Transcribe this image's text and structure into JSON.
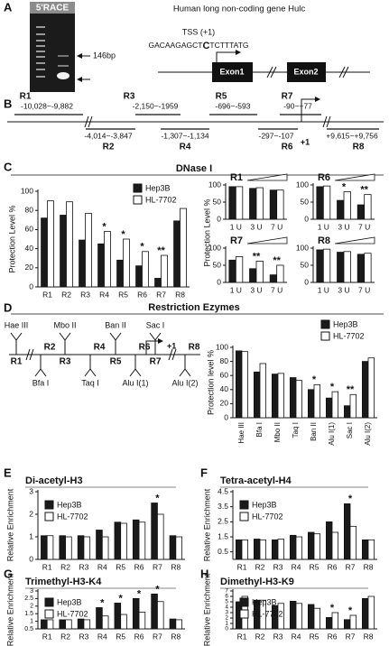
{
  "panel_labels": [
    "A",
    "B",
    "C",
    "D",
    "E",
    "F",
    "G",
    "H"
  ],
  "panel_a": {
    "gel_label": "5'RACE",
    "size_marker": "146bp",
    "gene_title": "Human long non-coding gene Hulc",
    "tss": "TSS (+1)",
    "sequence_before": "GACAAGAGCT",
    "sequence_tss": "C",
    "sequence_after": "TCTTTATG",
    "exons": [
      "Exon1",
      "Exon2"
    ]
  },
  "panel_b": {
    "regions": [
      {
        "name": "R1",
        "range": "-10,028~-9,882"
      },
      {
        "name": "R2",
        "range": "-4,014~-3,847"
      },
      {
        "name": "R3",
        "range": "-2,150~-1959"
      },
      {
        "name": "R4",
        "range": "-1,307~-1,134"
      },
      {
        "name": "R5",
        "range": "-696~-593"
      },
      {
        "name": "R6",
        "range": "-297~-107"
      },
      {
        "name": "R7",
        "range": "-90~+77"
      },
      {
        "name": "R8",
        "range": "+9,615~+9,756"
      }
    ],
    "tss": "+1"
  },
  "panel_c": {
    "title": "DNase I"
  },
  "panel_d": {
    "title": "Restriction Ezymes",
    "enzymes": [
      "Hae III",
      "Bfa I",
      "Mbo II",
      "Taq I",
      "Ban II",
      "Alu I(1)",
      "Sac I",
      "Alu I(2)"
    ],
    "regions": [
      "R1",
      "R2",
      "R3",
      "R4",
      "R5",
      "R6",
      "R7",
      "R8"
    ],
    "tss": "+1"
  },
  "chart_data": [
    {
      "type": "bar",
      "y_label": "Protection Level %",
      "categories": [
        "R1",
        "R2",
        "R3",
        "R4",
        "R5",
        "R6",
        "R7",
        "R8"
      ],
      "series": [
        {
          "name": "Hep3B",
          "color": "#1a1a1a",
          "values": [
            72,
            75,
            49,
            45,
            28,
            22,
            9,
            69
          ]
        },
        {
          "name": "HL-7702",
          "color": "#ffffff",
          "values": [
            90,
            89,
            77,
            58,
            50,
            37,
            33,
            82
          ]
        }
      ],
      "ylim": [
        0,
        100
      ],
      "yticks": [
        0,
        20,
        40,
        60,
        80,
        100
      ],
      "significance": [
        null,
        null,
        null,
        "*",
        "*",
        "*",
        "**",
        null
      ],
      "legend": "top-right"
    },
    {
      "type": "bar",
      "title": "R1",
      "y_label": "Protection Level %",
      "categories": [
        "1 U",
        "3 U",
        "7 U"
      ],
      "series": [
        {
          "color": "#1a1a1a",
          "values": [
            95,
            90,
            85
          ]
        },
        {
          "color": "#ffffff",
          "values": [
            95,
            92,
            85
          ]
        }
      ],
      "ylim": [
        0,
        100
      ],
      "yticks": [
        0,
        50,
        100
      ],
      "significance": [
        null,
        null,
        null
      ]
    },
    {
      "type": "bar",
      "title": "R6",
      "categories": [
        "1 U",
        "3 U",
        "7 U"
      ],
      "series": [
        {
          "color": "#1a1a1a",
          "values": [
            95,
            55,
            42
          ]
        },
        {
          "color": "#ffffff",
          "values": [
            97,
            80,
            72
          ]
        }
      ],
      "ylim": [
        0,
        100
      ],
      "yticks": [
        0,
        50,
        100
      ],
      "significance": [
        null,
        "*",
        "**"
      ]
    },
    {
      "type": "bar",
      "title": "R7",
      "categories": [
        "1 U",
        "3 U",
        "7 U"
      ],
      "series": [
        {
          "color": "#1a1a1a",
          "values": [
            65,
            40,
            22
          ]
        },
        {
          "color": "#ffffff",
          "values": [
            75,
            62,
            50
          ]
        }
      ],
      "ylim": [
        0,
        100
      ],
      "yticks": [
        0,
        50,
        100
      ],
      "significance": [
        null,
        "**",
        "**"
      ]
    },
    {
      "type": "bar",
      "title": "R8",
      "categories": [
        "1 U",
        "3 U",
        "7 U"
      ],
      "series": [
        {
          "color": "#1a1a1a",
          "values": [
            95,
            88,
            82
          ]
        },
        {
          "color": "#ffffff",
          "values": [
            97,
            90,
            85
          ]
        }
      ],
      "ylim": [
        0,
        100
      ],
      "yticks": [
        0,
        50,
        100
      ],
      "significance": [
        null,
        null,
        null
      ]
    },
    {
      "type": "bar",
      "y_label": "Protection level %",
      "categories": [
        "Hae III",
        "Bfa I",
        "Mbo II",
        "Taq I",
        "Ban II",
        "Alu I(1)",
        "Sac I",
        "Alu I(2)"
      ],
      "series": [
        {
          "name": "Hep3B",
          "color": "#1a1a1a",
          "values": [
            95,
            65,
            62,
            57,
            40,
            28,
            17,
            80
          ]
        },
        {
          "name": "HL-7702",
          "color": "#ffffff",
          "values": [
            94,
            77,
            63,
            53,
            47,
            37,
            33,
            85
          ]
        }
      ],
      "ylim": [
        0,
        100
      ],
      "yticks": [
        0,
        20,
        40,
        60,
        80,
        100
      ],
      "significance": [
        null,
        null,
        null,
        null,
        "*",
        "*",
        "**",
        null
      ],
      "legend": "top-right"
    },
    {
      "type": "bar",
      "title": "Di-acetyl-H3",
      "y_label": "Relative Enrichment",
      "categories": [
        "R1",
        "R2",
        "R3",
        "R4",
        "R5",
        "R6",
        "R7",
        "R8"
      ],
      "series": [
        {
          "name": "Hep3B",
          "color": "#1a1a1a",
          "values": [
            1.05,
            1.05,
            1.05,
            1.3,
            1.65,
            1.75,
            2.5,
            1.05
          ]
        },
        {
          "name": "HL-7702",
          "color": "#ffffff",
          "values": [
            1.05,
            1.0,
            1.0,
            1.0,
            1.6,
            1.65,
            2.0,
            1.0
          ]
        }
      ],
      "ylim": [
        0,
        3
      ],
      "yticks": [
        0,
        1,
        2,
        3
      ],
      "significance": [
        null,
        null,
        null,
        null,
        null,
        null,
        "*",
        null
      ],
      "legend": "top-left"
    },
    {
      "type": "bar",
      "title": "Tetra-acetyl-H4",
      "y_label": "Relative Enrichment",
      "categories": [
        "R1",
        "R2",
        "R3",
        "R4",
        "R5",
        "R6",
        "R7",
        "R8"
      ],
      "series": [
        {
          "name": "Hep3B",
          "color": "#1a1a1a",
          "values": [
            1.3,
            1.35,
            1.3,
            1.6,
            1.8,
            2.5,
            3.7,
            1.3
          ]
        },
        {
          "name": "HL-7702",
          "color": "#ffffff",
          "values": [
            1.3,
            1.3,
            1.35,
            1.5,
            1.7,
            1.8,
            2.2,
            1.3
          ]
        }
      ],
      "ylim": [
        0,
        4.5
      ],
      "yticks": [
        0.5,
        1.5,
        2.5,
        3.5,
        4.5
      ],
      "significance": [
        null,
        null,
        null,
        null,
        null,
        null,
        "*",
        null
      ],
      "legend": "top-left"
    },
    {
      "type": "bar",
      "title": "Trimethyl-H3-K4",
      "y_label": "Relative Enrichment",
      "categories": [
        "R1",
        "R2",
        "R3",
        "R4",
        "R5",
        "R6",
        "R7",
        "R8"
      ],
      "series": [
        {
          "name": "Hep3B",
          "color": "#1a1a1a",
          "values": [
            1.1,
            1.1,
            1.15,
            1.9,
            2.2,
            2.5,
            2.8,
            1.15
          ]
        },
        {
          "name": "HL-7702",
          "color": "#ffffff",
          "values": [
            1.1,
            1.1,
            1.1,
            1.35,
            1.45,
            1.6,
            2.3,
            1.1
          ]
        }
      ],
      "ylim": [
        0.5,
        3
      ],
      "yticks": [
        0.5,
        1,
        1.5,
        2,
        2.5,
        3
      ],
      "significance": [
        null,
        null,
        null,
        "*",
        "*",
        "*",
        "*",
        null
      ],
      "legend": "top-left"
    },
    {
      "type": "bar",
      "title": "Dimethyl-H3-K9",
      "y_label": "Relative Enrichment",
      "categories": [
        "R1",
        "R2",
        "R3",
        "R4",
        "R5",
        "R6",
        "R7",
        "R8"
      ],
      "series": [
        {
          "name": "Hep3B",
          "color": "#1a1a1a",
          "values": [
            5.0,
            5.3,
            4.3,
            5.1,
            4.5,
            2.1,
            1.7,
            5.6
          ]
        },
        {
          "name": "HL-7702",
          "color": "#ffffff",
          "values": [
            6.0,
            5.3,
            4.7,
            4.7,
            3.8,
            3.0,
            2.5,
            6.0
          ]
        }
      ],
      "ylim": [
        0,
        7
      ],
      "yticks": [
        0,
        1,
        2,
        3,
        4,
        5,
        6,
        7
      ],
      "significance": [
        null,
        null,
        null,
        null,
        null,
        "*",
        "*",
        null
      ],
      "legend": "top-left"
    }
  ]
}
